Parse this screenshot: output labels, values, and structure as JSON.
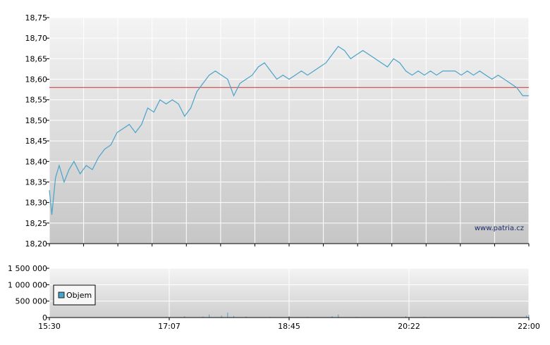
{
  "watermark": "www.patria.cz",
  "colors": {
    "series": "#4aa3c8",
    "reference": "#d03030",
    "grid": "#ffffff",
    "axis": "#000000"
  },
  "chart_data": [
    {
      "type": "line",
      "title": "",
      "xlabel": "",
      "ylabel": "",
      "ylim": [
        18.2,
        18.75
      ],
      "yticks": [
        "18,75",
        "18,70",
        "18,65",
        "18,60",
        "18,55",
        "18,50",
        "18,45",
        "18,40",
        "18,35",
        "18,30",
        "18,25",
        "18,20"
      ],
      "reference_line": 18.58,
      "grid": true,
      "x_time_range": [
        "15:30",
        "22:00"
      ],
      "series": [
        {
          "x": [
            "15:30",
            "15:32",
            "15:35",
            "15:38",
            "15:42",
            "15:46",
            "15:50",
            "15:55",
            "16:00",
            "16:05",
            "16:10",
            "16:15",
            "16:20",
            "16:25",
            "16:30",
            "16:35",
            "16:40",
            "16:45",
            "16:50",
            "16:55",
            "17:00",
            "17:05",
            "17:10",
            "17:15",
            "17:20",
            "17:25",
            "17:30",
            "17:35",
            "17:40",
            "17:45",
            "17:50",
            "17:55",
            "18:00",
            "18:05",
            "18:10",
            "18:15",
            "18:20",
            "18:25",
            "18:30",
            "18:35",
            "18:40",
            "18:45",
            "18:50",
            "18:55",
            "19:00",
            "19:05",
            "19:10",
            "19:15",
            "19:20",
            "19:25",
            "19:30",
            "19:35",
            "19:40",
            "19:45",
            "19:50",
            "19:55",
            "20:00",
            "20:05",
            "20:10",
            "20:15",
            "20:20",
            "20:25",
            "20:30",
            "20:35",
            "20:40",
            "20:45",
            "20:50",
            "20:55",
            "21:00",
            "21:05",
            "21:10",
            "21:15",
            "21:20",
            "21:25",
            "21:30",
            "21:35",
            "21:40",
            "21:45",
            "21:50",
            "21:55",
            "22:00"
          ],
          "values": [
            18.33,
            18.27,
            18.36,
            18.39,
            18.35,
            18.38,
            18.4,
            18.37,
            18.39,
            18.38,
            18.41,
            18.43,
            18.44,
            18.47,
            18.48,
            18.49,
            18.47,
            18.49,
            18.53,
            18.52,
            18.55,
            18.54,
            18.55,
            18.54,
            18.51,
            18.53,
            18.57,
            18.59,
            18.61,
            18.62,
            18.61,
            18.6,
            18.56,
            18.59,
            18.6,
            18.61,
            18.63,
            18.64,
            18.62,
            18.6,
            18.61,
            18.6,
            18.61,
            18.62,
            18.61,
            18.62,
            18.63,
            18.64,
            18.66,
            18.68,
            18.67,
            18.65,
            18.66,
            18.67,
            18.66,
            18.65,
            18.64,
            18.63,
            18.65,
            18.64,
            18.62,
            18.61,
            18.62,
            18.61,
            18.62,
            18.61,
            18.62,
            18.62,
            18.62,
            18.61,
            18.62,
            18.61,
            18.62,
            18.61,
            18.6,
            18.61,
            18.6,
            18.59,
            18.58,
            18.56,
            18.56
          ]
        }
      ]
    },
    {
      "type": "bar",
      "title": "",
      "legend": [
        "Objem"
      ],
      "ylim": [
        0,
        1500000
      ],
      "yticks": [
        "1 500 000",
        "1 000 000",
        "500 000",
        "0"
      ],
      "xticks": [
        "15:30",
        "17:07",
        "18:45",
        "20:22",
        "22:00"
      ],
      "grid": true,
      "series": [
        {
          "name": "Objem",
          "x": [
            "17:05",
            "17:20",
            "17:35",
            "17:40",
            "17:50",
            "17:55",
            "18:00",
            "18:10",
            "18:30",
            "18:45",
            "19:00",
            "19:20",
            "19:25",
            "19:40",
            "20:05",
            "20:20",
            "20:35",
            "21:00",
            "21:30",
            "21:58",
            "22:00"
          ],
          "values": [
            20000,
            40000,
            30000,
            90000,
            60000,
            150000,
            50000,
            30000,
            20000,
            40000,
            20000,
            40000,
            90000,
            20000,
            15000,
            40000,
            20000,
            15000,
            15000,
            60000,
            80000
          ]
        }
      ]
    }
  ]
}
